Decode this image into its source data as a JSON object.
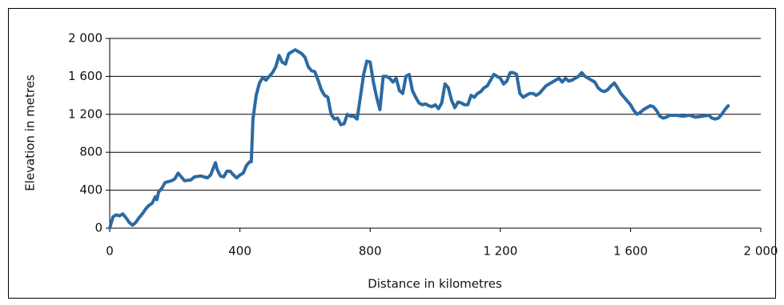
{
  "chart_data": {
    "type": "line",
    "xlabel": "Distance in kilometres",
    "ylabel": "Elevation in metres",
    "color": "#2b6aa3",
    "grid": true,
    "xlim": [
      0,
      2000
    ],
    "ylim": [
      0,
      2000
    ],
    "xticks": [
      0,
      400,
      800,
      {
        "value": 1200,
        "label": "1 200"
      },
      {
        "value": 1600,
        "label": "1 600"
      },
      {
        "value": 2000,
        "label": "2 000"
      }
    ],
    "yticks": [
      0,
      400,
      800,
      {
        "value": 1200,
        "label": "1 200"
      },
      {
        "value": 1600,
        "label": "1 600"
      },
      {
        "value": 2000,
        "label": "2 000"
      }
    ],
    "x": [
      0,
      10,
      20,
      30,
      40,
      50,
      60,
      70,
      80,
      90,
      100,
      110,
      120,
      130,
      140,
      145,
      150,
      160,
      170,
      190,
      200,
      210,
      220,
      230,
      250,
      260,
      280,
      300,
      310,
      320,
      325,
      330,
      340,
      350,
      360,
      370,
      380,
      390,
      400,
      410,
      420,
      430,
      435,
      440,
      450,
      460,
      470,
      480,
      490,
      500,
      510,
      520,
      530,
      540,
      550,
      560,
      570,
      580,
      590,
      600,
      610,
      620,
      630,
      640,
      650,
      660,
      670,
      680,
      690,
      700,
      710,
      720,
      730,
      740,
      750,
      760,
      770,
      780,
      790,
      800,
      810,
      820,
      830,
      840,
      850,
      860,
      870,
      880,
      890,
      900,
      910,
      920,
      930,
      940,
      950,
      960,
      970,
      980,
      990,
      1000,
      1010,
      1020,
      1030,
      1040,
      1050,
      1060,
      1070,
      1080,
      1090,
      1100,
      1110,
      1120,
      1130,
      1140,
      1150,
      1160,
      1170,
      1180,
      1190,
      1200,
      1210,
      1220,
      1230,
      1240,
      1250,
      1260,
      1270,
      1280,
      1290,
      1300,
      1310,
      1320,
      1330,
      1340,
      1350,
      1360,
      1370,
      1380,
      1390,
      1400,
      1410,
      1420,
      1430,
      1440,
      1450,
      1460,
      1470,
      1480,
      1490,
      1500,
      1510,
      1520,
      1530,
      1540,
      1550,
      1560,
      1570,
      1580,
      1590,
      1600,
      1610,
      1620,
      1630,
      1640,
      1650,
      1660,
      1670,
      1680,
      1690,
      1700,
      1710,
      1720,
      1740,
      1760,
      1780,
      1800,
      1820,
      1840,
      1850,
      1860,
      1870,
      1880,
      1890,
      1900
    ],
    "values": [
      0,
      120,
      140,
      130,
      150,
      110,
      60,
      30,
      60,
      110,
      150,
      200,
      240,
      260,
      330,
      300,
      380,
      420,
      480,
      500,
      520,
      580,
      540,
      500,
      510,
      540,
      550,
      530,
      560,
      650,
      690,
      620,
      550,
      540,
      600,
      600,
      560,
      530,
      560,
      580,
      660,
      700,
      700,
      1150,
      1400,
      1530,
      1590,
      1560,
      1600,
      1640,
      1700,
      1820,
      1750,
      1730,
      1840,
      1860,
      1880,
      1860,
      1840,
      1800,
      1700,
      1660,
      1650,
      1560,
      1460,
      1400,
      1380,
      1200,
      1150,
      1160,
      1090,
      1100,
      1200,
      1180,
      1180,
      1150,
      1380,
      1620,
      1760,
      1750,
      1540,
      1380,
      1250,
      1600,
      1600,
      1580,
      1540,
      1580,
      1450,
      1420,
      1600,
      1620,
      1450,
      1380,
      1320,
      1300,
      1310,
      1290,
      1280,
      1300,
      1260,
      1320,
      1520,
      1480,
      1350,
      1270,
      1330,
      1320,
      1300,
      1300,
      1400,
      1380,
      1420,
      1440,
      1480,
      1500,
      1560,
      1620,
      1600,
      1580,
      1520,
      1550,
      1640,
      1640,
      1620,
      1420,
      1380,
      1400,
      1420,
      1420,
      1400,
      1420,
      1460,
      1500,
      1520,
      1540,
      1560,
      1580,
      1540,
      1580,
      1550,
      1560,
      1580,
      1600,
      1640,
      1600,
      1580,
      1560,
      1540,
      1480,
      1450,
      1440,
      1460,
      1500,
      1530,
      1480,
      1420,
      1380,
      1340,
      1300,
      1240,
      1200,
      1220,
      1250,
      1270,
      1290,
      1280,
      1240,
      1180,
      1160,
      1170,
      1190,
      1190,
      1180,
      1190,
      1170,
      1180,
      1190,
      1160,
      1150,
      1160,
      1200,
      1250,
      1290
    ]
  }
}
